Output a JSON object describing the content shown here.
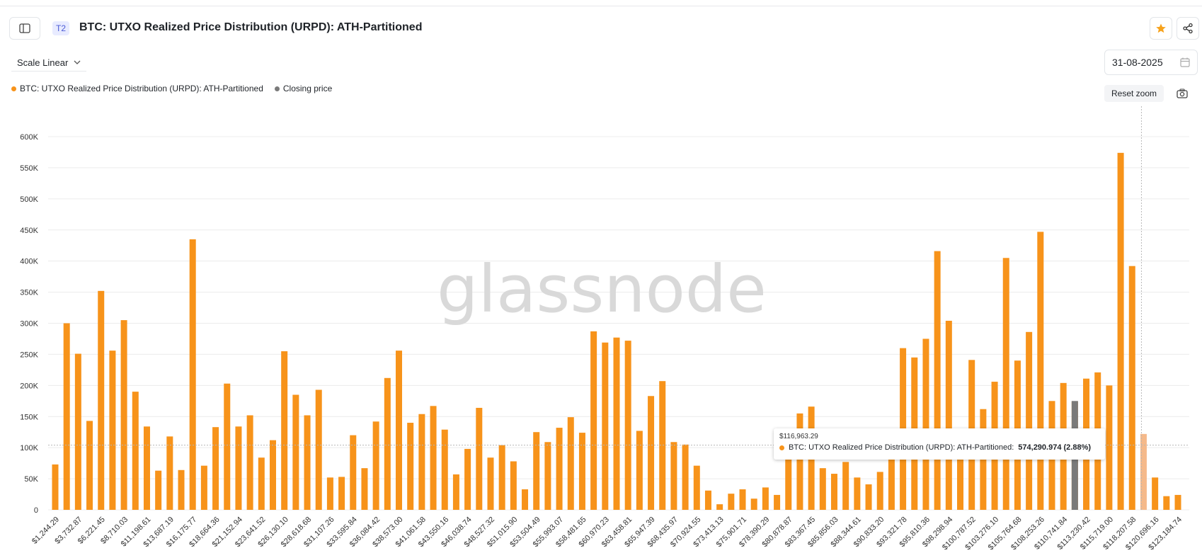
{
  "header": {
    "tier": "T2",
    "title": "BTC: UTXO Realized Price Distribution (URPD): ATH-Partitioned"
  },
  "controls": {
    "scale_label": "Scale Linear",
    "date": "31-08-2025",
    "reset_zoom": "Reset zoom"
  },
  "legend": [
    {
      "label": "BTC: UTXO Realized Price Distribution (URPD): ATH-Partitioned",
      "color": "#f7931a"
    },
    {
      "label": "Closing price",
      "color": "#7a7a7a"
    }
  ],
  "watermark": "glassnode",
  "tooltip": {
    "date": "$116,963.29",
    "series": "BTC: UTXO Realized Price Distribution (URPD): ATH-Partitioned:",
    "value": "574,290.974 (2.88%)"
  },
  "chart_data": {
    "type": "bar",
    "y_ticks": [
      "0",
      "50K",
      "100K",
      "150K",
      "200K",
      "250K",
      "300K",
      "350K",
      "400K",
      "450K",
      "500K",
      "550K",
      "600K"
    ],
    "ylim": [
      0,
      600000
    ],
    "x_tick_labels": [
      "$1,244.29",
      "$3,732.87",
      "$6,221.45",
      "$8,710.03",
      "$11,198.61",
      "$13,687.19",
      "$16,175.77",
      "$18,664.36",
      "$21,152.94",
      "$23,641.52",
      "$26,130.10",
      "$28,618.68",
      "$31,107.26",
      "$33,595.84",
      "$36,084.42",
      "$38,573.00",
      "$41,061.58",
      "$43,550.16",
      "$46,038.74",
      "$48,527.32",
      "$51,015.90",
      "$53,504.49",
      "$55,993.07",
      "$58,481.65",
      "$60,970.23",
      "$63,458.81",
      "$65,947.39",
      "$68,435.97",
      "$70,924.55",
      "$73,413.13",
      "$75,901.71",
      "$78,390.29",
      "$80,878.87",
      "$83,367.45",
      "$85,856.03",
      "$88,344.61",
      "$90,833.20",
      "$93,321.78",
      "$95,810.36",
      "$98,298.94",
      "$100,787.52",
      "$103,276.10",
      "$105,764.68",
      "$108,253.26",
      "$110,741.84",
      "$113,230.42",
      "$115,719.00",
      "$118,207.58",
      "$120,696.16",
      "$123,184.74"
    ],
    "values": [
      73000,
      300000,
      251000,
      143000,
      352000,
      256000,
      305000,
      190000,
      134000,
      63000,
      118000,
      64000,
      435000,
      71000,
      133000,
      203000,
      134000,
      152000,
      84000,
      112000,
      255000,
      185000,
      152000,
      193000,
      52000,
      53000,
      120000,
      67000,
      142000,
      212000,
      256000,
      140000,
      154000,
      167000,
      129000,
      57000,
      98000,
      164000,
      84000,
      104000,
      78000,
      33000,
      125000,
      109000,
      132000,
      149000,
      124000,
      287000,
      269000,
      277000,
      272000,
      127000,
      183000,
      207000,
      109000,
      105000,
      71000,
      31000,
      9000,
      26000,
      33000,
      18000,
      36000,
      24000,
      88000,
      155000,
      166000,
      67000,
      58000,
      77000,
      52000,
      41000,
      61000,
      95000,
      260000,
      245000,
      275000,
      416000,
      304000,
      100000,
      241000,
      162000,
      206000,
      405000,
      240000,
      286000,
      447000,
      175000,
      204000,
      174000,
      211000,
      221000,
      200000,
      574000,
      392000,
      122000,
      52000,
      22000,
      24000
    ],
    "closing_price_index": 89,
    "highlight_index": 95,
    "closing_price_value": 175000,
    "crosshair_value": 104000,
    "colors": {
      "bar": "#f7931a",
      "closing": "#7a7a7a",
      "highlight": "#f5b98a",
      "grid": "#ececec"
    }
  }
}
